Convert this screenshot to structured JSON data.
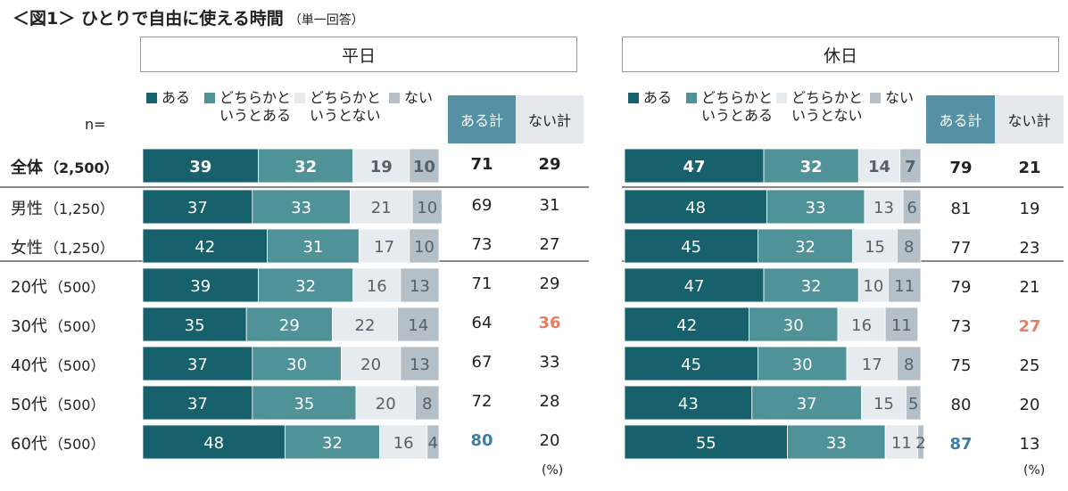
{
  "title": "＜図1＞ ひとりで自由に使える時間",
  "subtitle": "（単一回答）",
  "n_label": "n=",
  "unit_label": "(%)",
  "colors": {
    "aru": "#16616b",
    "dochira_aru": "#4f9399",
    "dochira_nai": "#e6ebef",
    "nai": "#b4bfc8",
    "aru_kei_bg": "#5591a4",
    "nai_kei_bg": "#e5e9ee",
    "highlight_blue": "#3e7ea0",
    "highlight_red": "#e87d63"
  },
  "legend": {
    "aru": "ある",
    "dochira_aru_1": "どちらかと",
    "dochira_aru_2": "いうとある",
    "dochira_nai_1": "どちらかと",
    "dochira_nai_2": "いうとない",
    "nai": "ない"
  },
  "sum_headers": {
    "aru_kei": "ある計",
    "nai_kei": "ない計"
  },
  "rows": [
    {
      "label": "全体",
      "n": "（2,500）",
      "bold": true
    },
    {
      "label": "男性",
      "n": "（1,250）",
      "bold": false
    },
    {
      "label": "女性",
      "n": "（1,250）",
      "bold": false
    },
    {
      "label": "20代",
      "n": "（500）",
      "bold": false
    },
    {
      "label": "30代",
      "n": "（500）",
      "bold": false
    },
    {
      "label": "40代",
      "n": "（500）",
      "bold": false
    },
    {
      "label": "50代",
      "n": "（500）",
      "bold": false
    },
    {
      "label": "60代",
      "n": "（500）",
      "bold": false
    }
  ],
  "chart_data": [
    {
      "type": "bar",
      "orientation": "horizontal-stacked-100",
      "title": "平日",
      "categories": [
        "全体（2,500）",
        "男性（1,250）",
        "女性（1,250）",
        "20代（500）",
        "30代（500）",
        "40代（500）",
        "50代（500）",
        "60代（500）"
      ],
      "series": [
        {
          "name": "ある",
          "values": [
            39,
            37,
            42,
            39,
            35,
            37,
            37,
            48
          ]
        },
        {
          "name": "どちらかというとある",
          "values": [
            32,
            33,
            31,
            32,
            29,
            30,
            35,
            32
          ]
        },
        {
          "name": "どちらかというとない",
          "values": [
            19,
            21,
            17,
            16,
            22,
            20,
            20,
            16
          ]
        },
        {
          "name": "ない",
          "values": [
            10,
            10,
            10,
            13,
            14,
            13,
            8,
            4
          ]
        }
      ],
      "aru_kei": [
        71,
        69,
        73,
        71,
        64,
        67,
        72,
        80
      ],
      "nai_kei": [
        29,
        31,
        27,
        29,
        36,
        33,
        28,
        20
      ],
      "highlights": {
        "aru_kei_max_index": 7,
        "nai_kei_max_index": 4
      },
      "xlim": [
        0,
        100
      ]
    },
    {
      "type": "bar",
      "orientation": "horizontal-stacked-100",
      "title": "休日",
      "categories": [
        "全体（2,500）",
        "男性（1,250）",
        "女性（1,250）",
        "20代（500）",
        "30代（500）",
        "40代（500）",
        "50代（500）",
        "60代（500）"
      ],
      "series": [
        {
          "name": "ある",
          "values": [
            47,
            48,
            45,
            47,
            42,
            45,
            43,
            55
          ]
        },
        {
          "name": "どちらかというとある",
          "values": [
            32,
            33,
            32,
            32,
            30,
            30,
            37,
            33
          ]
        },
        {
          "name": "どちらかというとない",
          "values": [
            14,
            13,
            15,
            10,
            16,
            17,
            15,
            11
          ]
        },
        {
          "name": "ない",
          "values": [
            7,
            6,
            8,
            11,
            11,
            8,
            5,
            2
          ]
        }
      ],
      "aru_kei": [
        79,
        81,
        77,
        79,
        73,
        75,
        80,
        87
      ],
      "nai_kei": [
        21,
        19,
        23,
        21,
        27,
        25,
        20,
        13
      ],
      "highlights": {
        "aru_kei_max_index": 7,
        "nai_kei_max_index": 4
      },
      "xlim": [
        0,
        100
      ]
    }
  ]
}
